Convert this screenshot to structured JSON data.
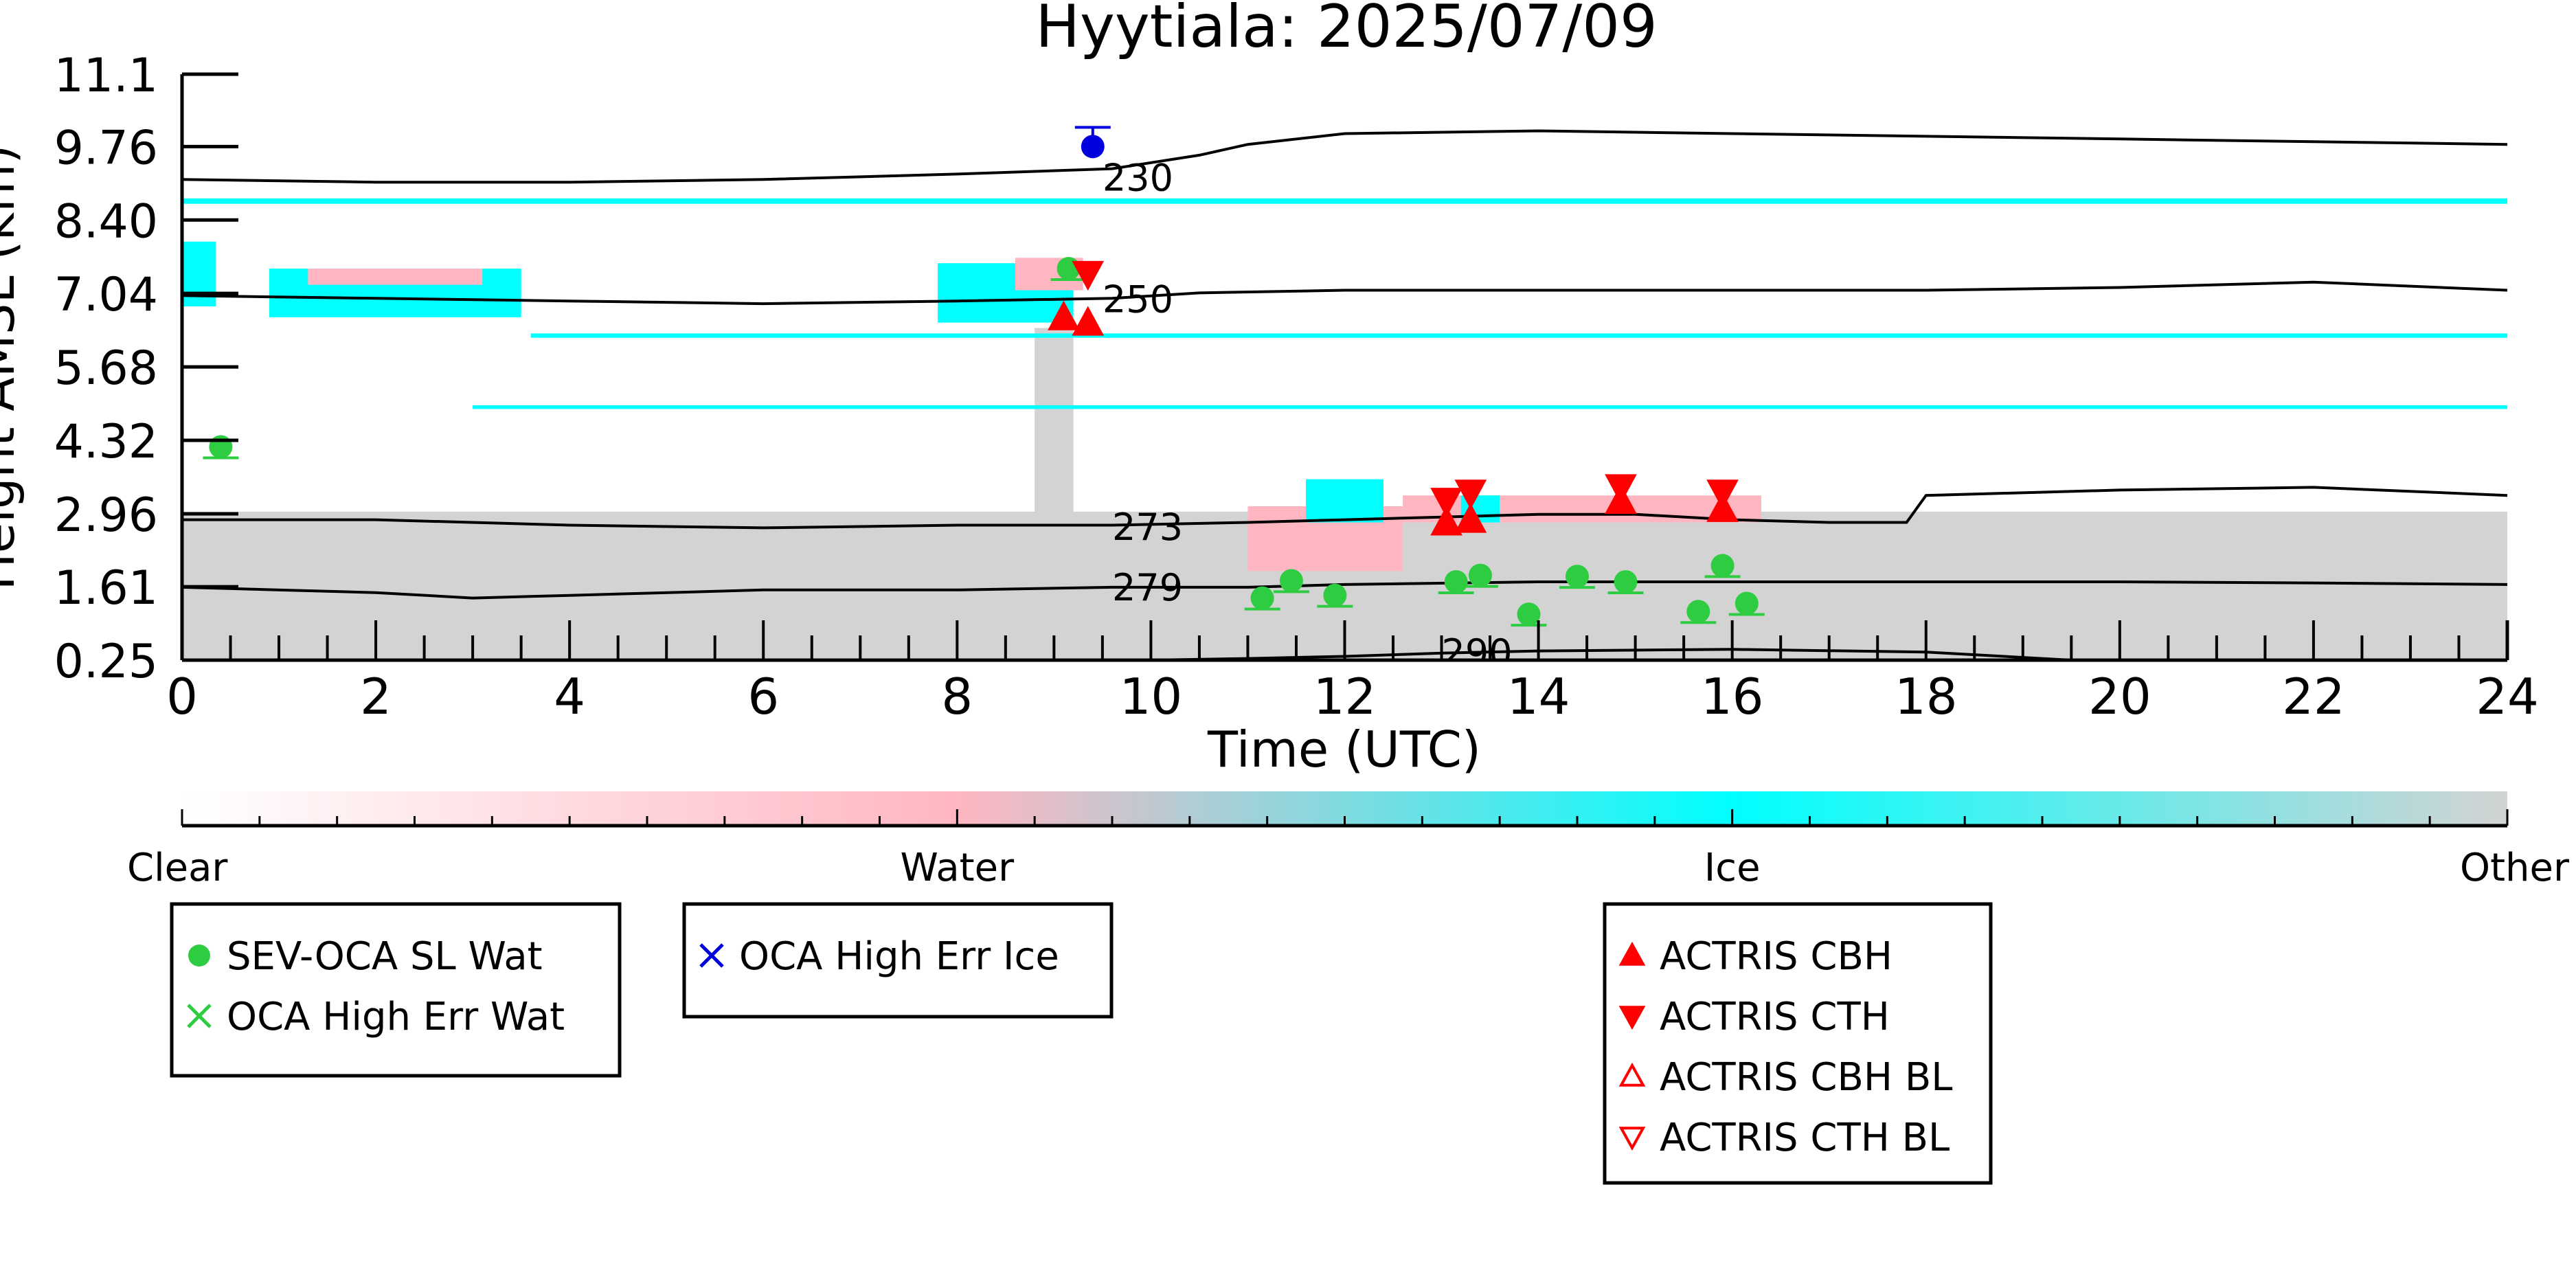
{
  "chart_data": {
    "type": "scatter",
    "title": "Hyytiala: 2025/07/09",
    "xlabel": "Time (UTC)",
    "ylabel": "Height AMSL (km)",
    "xlim": [
      0,
      24
    ],
    "ylim": [
      0.25,
      11.1
    ],
    "x_ticks": [
      "0",
      "2",
      "4",
      "6",
      "8",
      "10",
      "12",
      "14",
      "16",
      "18",
      "20",
      "22",
      "24"
    ],
    "y_ticks": [
      "0.25",
      "1.61",
      "2.96",
      "4.32",
      "5.68",
      "7.04",
      "8.40",
      "9.76",
      "11.1"
    ],
    "grid": false,
    "background_classes": {
      "clear_sky_color": "#ffffff",
      "other_color": "#d3d3d3",
      "regions": [
        {
          "class": "Other",
          "x": [
            0,
            24
          ],
          "y": [
            0.25,
            3.0
          ]
        },
        {
          "class": "Other",
          "x": [
            8.8,
            9.2
          ],
          "y": [
            0.25,
            6.4
          ]
        },
        {
          "class": "Ice",
          "x": [
            0,
            0.35
          ],
          "y": [
            6.8,
            8.0
          ]
        },
        {
          "class": "Ice",
          "x": [
            0.9,
            3.5
          ],
          "y": [
            6.6,
            7.5
          ]
        },
        {
          "class": "Water",
          "x": [
            1.3,
            3.1
          ],
          "y": [
            7.2,
            7.5
          ]
        },
        {
          "class": "Ice",
          "x": [
            7.8,
            9.2
          ],
          "y": [
            6.5,
            7.6
          ]
        },
        {
          "class": "Water",
          "x": [
            8.6,
            9.3
          ],
          "y": [
            7.1,
            7.7
          ]
        },
        {
          "class": "Water",
          "x": [
            11.0,
            12.6
          ],
          "y": [
            1.9,
            3.1
          ]
        },
        {
          "class": "Ice",
          "x": [
            11.6,
            12.4
          ],
          "y": [
            2.8,
            3.6
          ]
        },
        {
          "class": "Water",
          "x": [
            12.6,
            16.3
          ],
          "y": [
            2.8,
            3.3
          ]
        },
        {
          "class": "Ice",
          "x": [
            13.2,
            13.6
          ],
          "y": [
            2.8,
            3.3
          ]
        },
        {
          "class": "Ice",
          "x": [
            0,
            24
          ],
          "y": [
            8.7,
            8.8
          ]
        },
        {
          "class": "Ice",
          "x": [
            3.6,
            24
          ],
          "y": [
            6.22,
            6.3
          ]
        },
        {
          "class": "Ice",
          "x": [
            3,
            24
          ],
          "y": [
            4.9,
            4.97
          ]
        }
      ]
    },
    "contours": [
      {
        "label": "230",
        "label_x": 9.5,
        "label_y": 9.2,
        "x": [
          0,
          2,
          4,
          6,
          8,
          9.6,
          10.5,
          11,
          12,
          14,
          16,
          18,
          20,
          22,
          24
        ],
        "y": [
          9.15,
          9.1,
          9.1,
          9.15,
          9.25,
          9.35,
          9.6,
          9.8,
          10.0,
          10.05,
          10.0,
          9.95,
          9.9,
          9.85,
          9.8
        ]
      },
      {
        "label": "250",
        "label_x": 9.5,
        "label_y": 6.95,
        "x": [
          0,
          2,
          4,
          6,
          8,
          9.6,
          10.5,
          12,
          14,
          16,
          18,
          20,
          22,
          24
        ],
        "y": [
          7.0,
          6.95,
          6.9,
          6.85,
          6.9,
          6.95,
          7.05,
          7.1,
          7.1,
          7.1,
          7.1,
          7.15,
          7.25,
          7.1
        ]
      },
      {
        "label": "273",
        "label_x": 9.6,
        "label_y": 2.73,
        "x": [
          0,
          2,
          4,
          6,
          8,
          9.6,
          11,
          12,
          13,
          14,
          15,
          16,
          17,
          17.8,
          18,
          20,
          22,
          24
        ],
        "y": [
          2.85,
          2.85,
          2.75,
          2.7,
          2.75,
          2.75,
          2.8,
          2.85,
          2.9,
          2.95,
          2.95,
          2.85,
          2.8,
          2.8,
          3.3,
          3.4,
          3.45,
          3.3
        ]
      },
      {
        "label": "279",
        "label_x": 9.6,
        "label_y": 1.61,
        "x": [
          0,
          2,
          3,
          4,
          6,
          8,
          9.6,
          11,
          12,
          14,
          16,
          18,
          20,
          22,
          24
        ],
        "y": [
          1.6,
          1.5,
          1.4,
          1.45,
          1.55,
          1.55,
          1.6,
          1.6,
          1.65,
          1.7,
          1.7,
          1.7,
          1.7,
          1.68,
          1.65
        ]
      },
      {
        "label": "290",
        "label_x": 13.0,
        "label_y": 0.4,
        "x": [
          10,
          11,
          12,
          13,
          14,
          16,
          18,
          19.5,
          20,
          22,
          24
        ],
        "y": [
          0.25,
          0.28,
          0.32,
          0.38,
          0.42,
          0.45,
          0.4,
          0.25,
          0.2,
          0.2,
          0.2
        ]
      }
    ],
    "series": [
      {
        "name": "SEV-OCA SL Wat",
        "marker": "circle",
        "color": "#2ecc40",
        "points": [
          [
            0.4,
            4.2
          ],
          [
            9.15,
            7.5
          ],
          [
            11.15,
            1.4
          ],
          [
            11.45,
            1.72
          ],
          [
            11.9,
            1.45
          ],
          [
            13.15,
            1.7
          ],
          [
            13.4,
            1.82
          ],
          [
            13.9,
            1.1
          ],
          [
            14.4,
            1.8
          ],
          [
            14.9,
            1.7
          ],
          [
            15.65,
            1.15
          ],
          [
            15.9,
            2.0
          ],
          [
            16.15,
            1.3
          ]
        ]
      },
      {
        "name": "OCA High Err Wat",
        "marker": "x",
        "color": "#2ecc40",
        "points": []
      },
      {
        "name": "OCA High Err Ice",
        "marker": "x",
        "color": "#0000dd",
        "points": []
      },
      {
        "name": "OCA High Err Ice (circle)",
        "marker": "circle",
        "color": "#0000dd",
        "points": [
          [
            9.4,
            9.76
          ]
        ]
      },
      {
        "name": "ACTRIS CBH",
        "marker": "triangle-up",
        "color": "#ff0000",
        "points": [
          [
            9.1,
            6.6
          ],
          [
            9.35,
            6.5
          ],
          [
            13.05,
            2.8
          ],
          [
            13.3,
            2.85
          ],
          [
            14.85,
            3.2
          ],
          [
            15.9,
            3.05
          ]
        ]
      },
      {
        "name": "ACTRIS CTH",
        "marker": "triangle-down",
        "color": "#ff0000",
        "points": [
          [
            9.35,
            7.4
          ],
          [
            13.05,
            3.2
          ],
          [
            13.3,
            3.35
          ],
          [
            14.85,
            3.45
          ],
          [
            15.9,
            3.35
          ]
        ]
      },
      {
        "name": "ACTRIS CBH BL",
        "marker": "triangle-up-open",
        "color": "#ff0000",
        "points": []
      },
      {
        "name": "ACTRIS CTH BL",
        "marker": "triangle-down-open",
        "color": "#ff0000",
        "points": []
      }
    ],
    "colorbar": {
      "labels": [
        "Clear",
        "Water",
        "Ice",
        "Other"
      ],
      "stops": [
        "#ffffff",
        "#ffb6c1",
        "#00ffff",
        "#d3d3d3"
      ]
    },
    "legends": [
      {
        "entries": [
          {
            "label": "SEV-OCA SL Wat",
            "marker": "circle",
            "color": "#2ecc40"
          },
          {
            "label": "OCA High Err Wat",
            "marker": "x",
            "color": "#2ecc40"
          }
        ]
      },
      {
        "entries": [
          {
            "label": "OCA High Err Ice",
            "marker": "x",
            "color": "#0000dd"
          }
        ]
      },
      {
        "entries": [
          {
            "label": "ACTRIS CBH",
            "marker": "triangle-up",
            "color": "#ff0000"
          },
          {
            "label": "ACTRIS CTH",
            "marker": "triangle-down",
            "color": "#ff0000"
          },
          {
            "label": "ACTRIS CBH BL",
            "marker": "triangle-up-open",
            "color": "#ff0000"
          },
          {
            "label": "ACTRIS CTH BL",
            "marker": "triangle-down-open",
            "color": "#ff0000"
          }
        ]
      }
    ]
  }
}
